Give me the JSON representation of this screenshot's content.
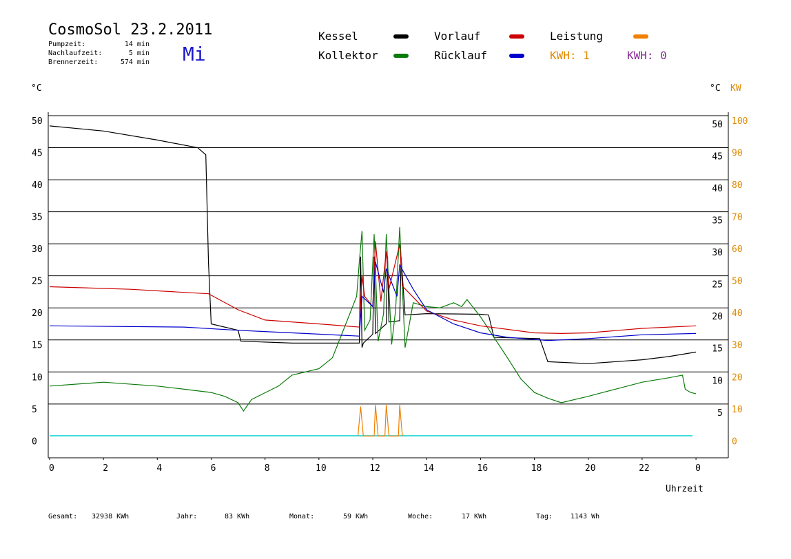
{
  "chart_data": {
    "type": "line",
    "title": "CosmoSol 23.2.2011",
    "info": [
      {
        "label": "Pumpzeit:",
        "value": "14 min"
      },
      {
        "label": "Nachlaufzeit:",
        "value": "5 min"
      },
      {
        "label": "Brennerzeit:",
        "value": "574 min"
      }
    ],
    "weekday": "Mi",
    "kwh_labels": [
      {
        "text": "KWH: 1",
        "color": "#e08a00"
      },
      {
        "text": "KWH: 0",
        "color": "#8a2a9a"
      }
    ],
    "y_label": "°C",
    "y_label_right": "°C",
    "y2_label": "KW",
    "x_label": "Uhrzeit",
    "xlim": [
      -0.05,
      25.2
    ],
    "xticks": [
      0,
      2,
      4,
      6,
      8,
      10,
      12,
      14,
      16,
      18,
      20,
      22,
      {
        "value": 24,
        "label": "0"
      }
    ],
    "ylim": [
      -3.4,
      50
    ],
    "yticks": [
      0,
      5,
      10,
      15,
      20,
      25,
      30,
      35,
      40,
      45,
      50
    ],
    "right_yticks": [
      5,
      10,
      15,
      20,
      25,
      30,
      35,
      40,
      45,
      50
    ],
    "y2lim": [
      -6.8,
      100
    ],
    "y2ticks": [
      0,
      10,
      20,
      30,
      40,
      50,
      60,
      70,
      80,
      90,
      100
    ],
    "grid": true,
    "series": [
      {
        "name": "Kessel",
        "color": "#000000",
        "x": [
          0,
          2,
          4,
          5.5,
          5.8,
          5.9,
          6.0,
          7,
          7.1,
          9,
          11.5,
          11.55,
          11.6,
          11.65,
          12.0,
          12.05,
          12.1,
          12.5,
          12.55,
          12.6,
          13.0,
          13.05,
          13.2,
          14,
          16,
          16.3,
          16.5,
          18.2,
          18.5,
          20,
          22,
          23,
          24
        ],
        "values": [
          48.4,
          47.6,
          46.2,
          45,
          43.9,
          27,
          17.5,
          16.5,
          14.8,
          14.5,
          14.5,
          28,
          13.8,
          14.5,
          15.9,
          28,
          16,
          17.5,
          28,
          17.8,
          18,
          28,
          18.9,
          19.1,
          19,
          18.9,
          15.4,
          15.2,
          11.6,
          11.3,
          11.9,
          12.4,
          13.1
        ]
      },
      {
        "name": "Kollektor",
        "color": "#0a7a0a",
        "x": [
          0,
          2,
          4,
          5,
          6,
          6.5,
          7,
          7.2,
          7.5,
          8.5,
          9,
          10,
          10.5,
          11,
          11.4,
          11.5,
          11.6,
          11.7,
          11.9,
          12.05,
          12.2,
          12.4,
          12.5,
          12.7,
          12.85,
          13.0,
          13.2,
          13.5,
          14,
          14.5,
          15,
          15.3,
          15.5,
          16,
          16.5,
          17,
          17.5,
          18,
          18.5,
          19,
          20,
          21,
          22,
          23,
          23.5,
          23.6,
          23.8,
          24
        ],
        "values": [
          7.8,
          8.4,
          7.8,
          7.3,
          6.8,
          6.2,
          5.2,
          3.9,
          5.7,
          7.8,
          9.5,
          10.5,
          12.2,
          17.5,
          21.8,
          27.2,
          32,
          16.5,
          18.1,
          31.5,
          14.8,
          19.1,
          31.5,
          14.3,
          19.7,
          32.6,
          13.8,
          20.8,
          20.2,
          20,
          20.8,
          20.2,
          21.3,
          18.6,
          15.4,
          12.2,
          8.9,
          6.8,
          5.9,
          5.2,
          6.2,
          7.3,
          8.4,
          9.1,
          9.5,
          7.3,
          6.8,
          6.6
        ]
      },
      {
        "name": "Vorlauf",
        "color": "#cc0000",
        "x": [
          0,
          3,
          5.9,
          6.3,
          7,
          8,
          10,
          11.5,
          11.6,
          11.7,
          12.0,
          12.1,
          12.3,
          12.5,
          12.6,
          13.0,
          13.1,
          14,
          15,
          16,
          18,
          19,
          20,
          22,
          24
        ],
        "values": [
          23.3,
          22.9,
          22.2,
          21.3,
          19.7,
          18.1,
          17.5,
          17,
          25,
          21.8,
          20.2,
          30.4,
          21,
          28.8,
          22.9,
          29.9,
          23.4,
          19.5,
          18.1,
          17.2,
          16.1,
          16,
          16.1,
          16.8,
          17.2
        ]
      },
      {
        "name": "Rücklauf",
        "color": "#0000cc",
        "x": [
          0,
          5,
          7,
          9,
          11.5,
          11.6,
          12.0,
          12.1,
          12.4,
          12.5,
          12.9,
          13.0,
          13.5,
          14,
          15,
          16,
          17,
          18.5,
          20,
          22,
          24
        ],
        "values": [
          17.2,
          17,
          16.5,
          16.1,
          15.6,
          21.8,
          20.2,
          27.2,
          22.4,
          26.1,
          21.8,
          26.7,
          22.9,
          19.7,
          17.5,
          16.1,
          15.4,
          14.9,
          15.2,
          15.8,
          16
        ],
        "_": null
      },
      {
        "name": "Leistung",
        "color": "#f08000",
        "axis": "y2",
        "x": [
          11.45,
          11.55,
          11.65,
          12.05,
          12.1,
          12.2,
          12.45,
          12.5,
          12.6,
          12.95,
          13.0,
          13.1
        ],
        "values": [
          0,
          9.2,
          0,
          0,
          9.7,
          0,
          0,
          9.7,
          0,
          0,
          9.7,
          0
        ]
      }
    ],
    "footer": [
      {
        "label": "Gesamt:",
        "value": "32938 KWh"
      },
      {
        "label": "Jahr:",
        "value": "83 KWh"
      },
      {
        "label": "Monat:",
        "value": "59 KWh"
      },
      {
        "label": "Woche:",
        "value": "17 KWh"
      },
      {
        "label": "Tag:",
        "value": "1143 Wh"
      }
    ]
  }
}
